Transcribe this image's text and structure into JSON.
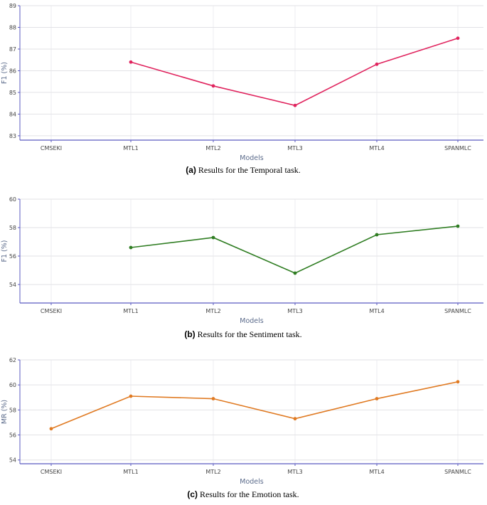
{
  "chart_data": [
    {
      "type": "line",
      "categories": [
        "CMSEKI",
        "MTL1",
        "MTL2",
        "MTL3",
        "MTL4",
        "SPANMLC"
      ],
      "series": [
        {
          "values": [
            null,
            86.4,
            85.3,
            84.4,
            86.3,
            87.5
          ],
          "color": "#e0245e"
        }
      ],
      "xlabel": "Models",
      "ylabel": "F1 (%)",
      "ylim": [
        82.8,
        89
      ],
      "yticks": [
        83,
        84,
        85,
        86,
        87,
        88,
        89
      ],
      "grid": true,
      "caption_label": "(a)",
      "caption_text": " Results for the Temporal task."
    },
    {
      "type": "line",
      "categories": [
        "CMSEKI",
        "MTL1",
        "MTL2",
        "MTL3",
        "MTL4",
        "SPANMLC"
      ],
      "series": [
        {
          "values": [
            null,
            56.6,
            57.3,
            54.8,
            57.5,
            58.1
          ],
          "color": "#2f7d22"
        }
      ],
      "xlabel": "Models",
      "ylabel": "F1 (%)",
      "ylim": [
        52.7,
        60
      ],
      "yticks": [
        54,
        56,
        58,
        60
      ],
      "grid": true,
      "caption_label": "(b)",
      "caption_text": " Results for the Sentiment task."
    },
    {
      "type": "line",
      "categories": [
        "CMSEKI",
        "MTL1",
        "MTL2",
        "MTL3",
        "MTL4",
        "SPANMLC"
      ],
      "series": [
        {
          "values": [
            56.5,
            59.1,
            58.9,
            57.3,
            58.9,
            60.25
          ],
          "color": "#e07a22"
        }
      ],
      "xlabel": "Models",
      "ylabel": "MR (%)",
      "ylim": [
        53.7,
        62
      ],
      "yticks": [
        54,
        56,
        58,
        60,
        62
      ],
      "grid": true,
      "caption_label": "(c)",
      "caption_text": " Results for the Emotion task."
    }
  ]
}
